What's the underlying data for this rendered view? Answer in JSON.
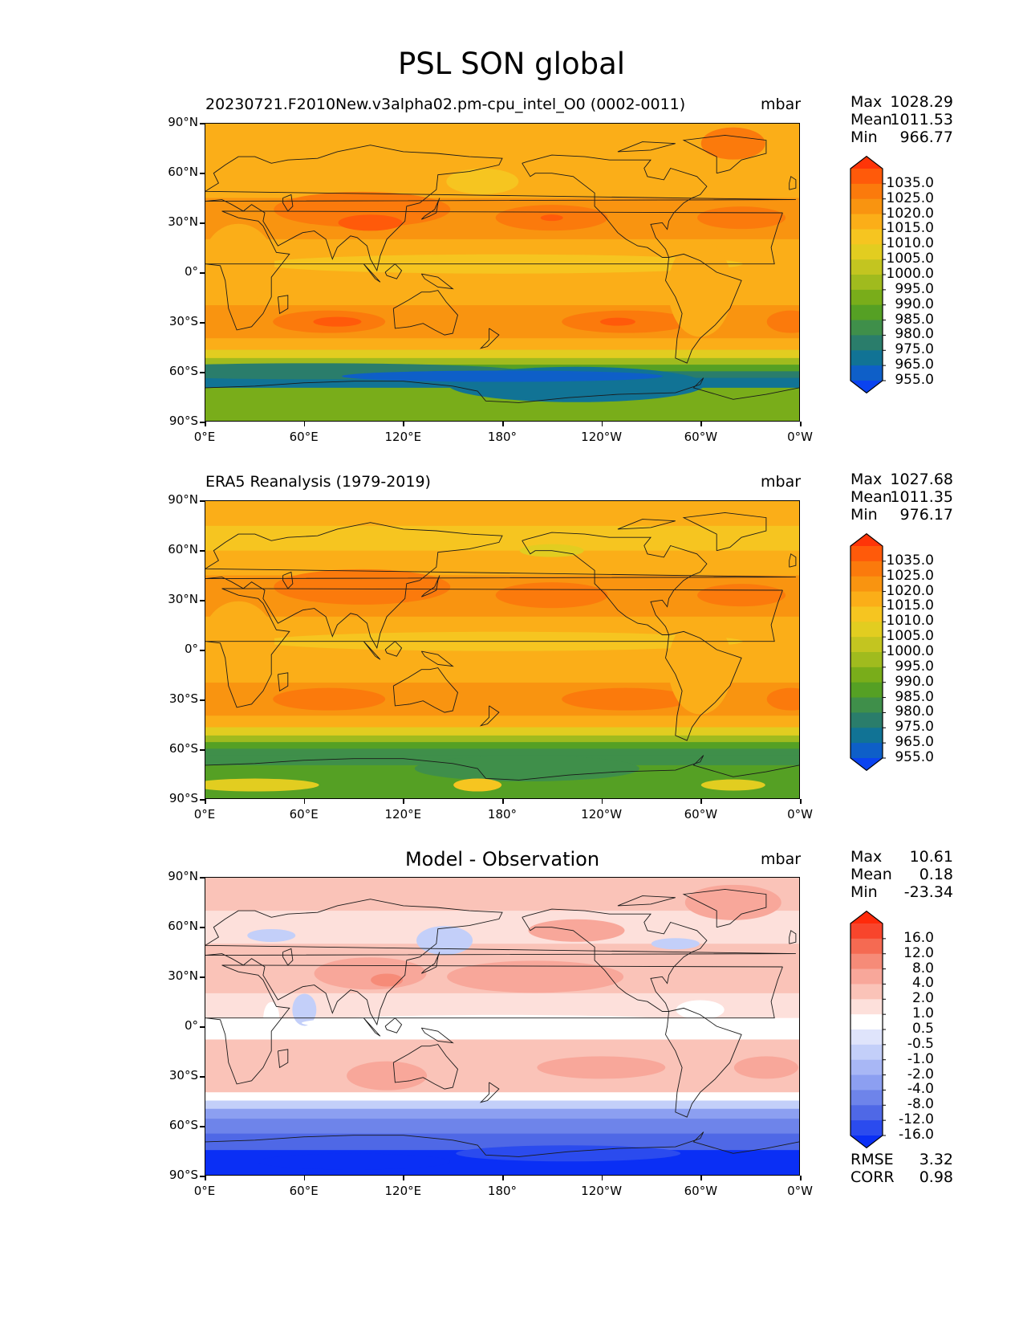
{
  "figure_title": "PSL SON global",
  "panels": [
    {
      "title": "20230721.F2010New.v3alpha02.pm-cpu_intel_O0 (0002-0011)",
      "units": "mbar",
      "stats": [
        {
          "label": "Max",
          "value": "1028.29"
        },
        {
          "label": "Mean",
          "value": "1011.53"
        },
        {
          "label": "Min",
          "value": "966.77"
        }
      ],
      "colorbar_labels": [
        "1035.0",
        "1025.0",
        "1020.0",
        "1015.0",
        "1010.0",
        "1005.0",
        "1000.0",
        "995.0",
        "990.0",
        "985.0",
        "980.0",
        "975.0",
        "965.0",
        "955.0"
      ],
      "colorbar_colors": [
        "#ff3508",
        "#ff5a0a",
        "#fb7a0c",
        "#f99410",
        "#fbae18",
        "#f6c520",
        "#e2cd20",
        "#c3c520",
        "#a0bb1e",
        "#79ad1a",
        "#55a024",
        "#3f8f4a",
        "#2a7d6b",
        "#117395",
        "#0e5fc8",
        "#0a43f0"
      ],
      "map_style": "model"
    },
    {
      "title": "ERA5 Reanalysis (1979-2019)",
      "units": "mbar",
      "stats": [
        {
          "label": "Max",
          "value": "1027.68"
        },
        {
          "label": "Mean",
          "value": "1011.35"
        },
        {
          "label": "Min",
          "value": "976.17"
        }
      ],
      "colorbar_labels": [
        "1035.0",
        "1025.0",
        "1020.0",
        "1015.0",
        "1010.0",
        "1005.0",
        "1000.0",
        "995.0",
        "990.0",
        "985.0",
        "980.0",
        "975.0",
        "965.0",
        "955.0"
      ],
      "colorbar_colors": [
        "#ff3508",
        "#ff5a0a",
        "#fb7a0c",
        "#f99410",
        "#fbae18",
        "#f6c520",
        "#e2cd20",
        "#c3c520",
        "#a0bb1e",
        "#79ad1a",
        "#55a024",
        "#3f8f4a",
        "#2a7d6b",
        "#117395",
        "#0e5fc8",
        "#0a43f0"
      ],
      "map_style": "obs"
    },
    {
      "title": "Model - Observation",
      "units": "mbar",
      "stats": [
        {
          "label": "Max",
          "value": "10.61"
        },
        {
          "label": "Mean",
          "value": "0.18"
        },
        {
          "label": "Min",
          "value": "-23.34"
        }
      ],
      "colorbar_labels": [
        "16.0",
        "12.0",
        "8.0",
        "4.0",
        "2.0",
        "1.0",
        "0.5",
        "-0.5",
        "-1.0",
        "-2.0",
        "-4.0",
        "-8.0",
        "-12.0",
        "-16.0"
      ],
      "colorbar_colors": [
        "#ff2a0a",
        "#f8452c",
        "#f56a52",
        "#f68b78",
        "#f8a79a",
        "#fac3b8",
        "#fde0db",
        "#ffffff",
        "#dfe4fb",
        "#c3cff9",
        "#a8b7f5",
        "#8c9ff1",
        "#6e84ea",
        "#4f68e6",
        "#2b4bee",
        "#0a2ff5"
      ],
      "map_style": "diff",
      "metrics": [
        {
          "label": "RMSE",
          "value": "3.32"
        },
        {
          "label": "CORR",
          "value": "0.98"
        }
      ]
    }
  ],
  "lat_ticks": [
    "90°N",
    "60°N",
    "30°N",
    "0°",
    "30°S",
    "60°S",
    "90°S"
  ],
  "lon_ticks": [
    "0°E",
    "60°E",
    "120°E",
    "180°",
    "120°W",
    "60°W",
    "0°W"
  ]
}
